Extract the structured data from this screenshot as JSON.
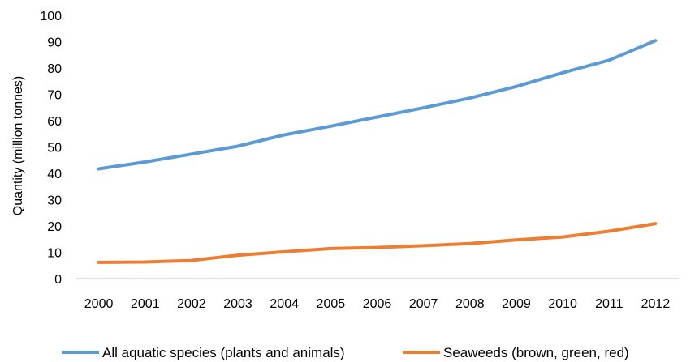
{
  "chart_data": {
    "type": "line",
    "title": "",
    "xlabel": "",
    "ylabel": "Quantity (million tonnes)",
    "ylim": [
      0,
      100
    ],
    "yticks": [
      0,
      10,
      20,
      30,
      40,
      50,
      60,
      70,
      80,
      90,
      100
    ],
    "categories": [
      "2000",
      "2001",
      "2002",
      "2003",
      "2004",
      "2005",
      "2006",
      "2007",
      "2008",
      "2009",
      "2010",
      "2011",
      "2012"
    ],
    "grid": false,
    "legend_position": "bottom",
    "series": [
      {
        "name": "All aquatic species (plants and animals)",
        "color": "#5B9BD5",
        "values": [
          41.7,
          44.3,
          47.3,
          50.3,
          54.6,
          57.9,
          61.4,
          64.9,
          68.6,
          73.0,
          78.2,
          83.0,
          90.4
        ]
      },
      {
        "name": "Seaweeds (brown, green, red)",
        "color": "#ED7D31",
        "values": [
          6.2,
          6.3,
          6.9,
          8.9,
          10.2,
          11.4,
          11.8,
          12.5,
          13.3,
          14.7,
          15.8,
          18.0,
          20.9
        ]
      }
    ]
  }
}
